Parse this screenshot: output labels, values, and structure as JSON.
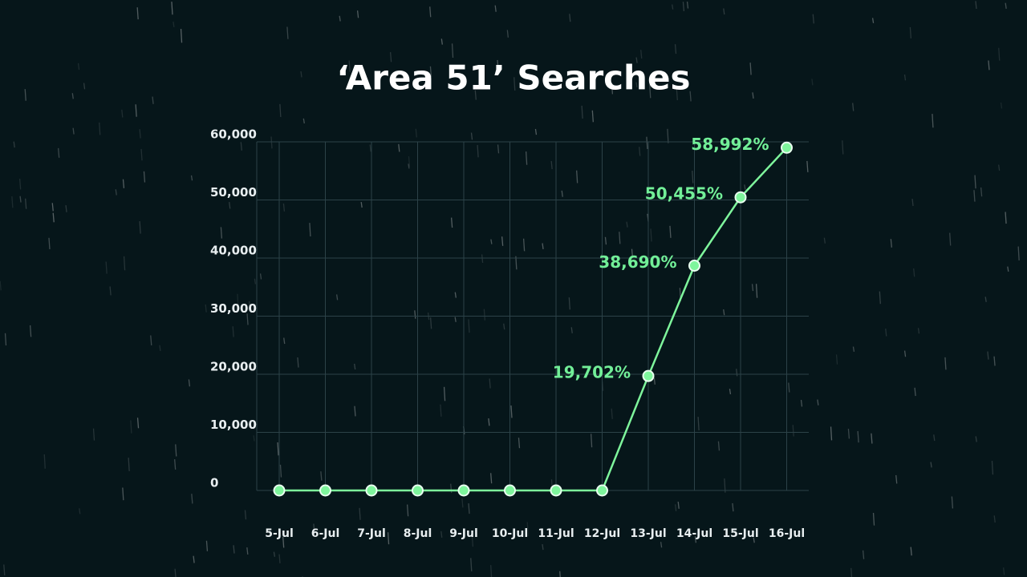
{
  "chart_data": {
    "type": "line",
    "title": "‘Area 51’ Searches",
    "categories": [
      "5-Jul",
      "6-Jul",
      "7-Jul",
      "8-Jul",
      "9-Jul",
      "10-Jul",
      "11-Jul",
      "12-Jul",
      "13-Jul",
      "14-Jul",
      "15-Jul",
      "16-Jul"
    ],
    "values": [
      0,
      0,
      0,
      0,
      0,
      0,
      0,
      0,
      19702,
      38690,
      50455,
      58992
    ],
    "value_labels": [
      null,
      null,
      null,
      null,
      null,
      null,
      null,
      null,
      "19,702%",
      "38,690%",
      "50,455%",
      "58,992%"
    ],
    "color": "#7ef59c",
    "ylim": [
      0,
      60000
    ],
    "yticks": [
      0,
      {
        "value": 10000,
        "label": "10,000"
      },
      {
        "value": 20000,
        "label": "20,000"
      },
      {
        "value": 30000,
        "label": "30,000"
      },
      {
        "value": 40000,
        "label": "40,000"
      },
      {
        "value": 50000,
        "label": "50,000"
      },
      {
        "value": 60000,
        "label": "60,000"
      }
    ],
    "grid": true
  }
}
